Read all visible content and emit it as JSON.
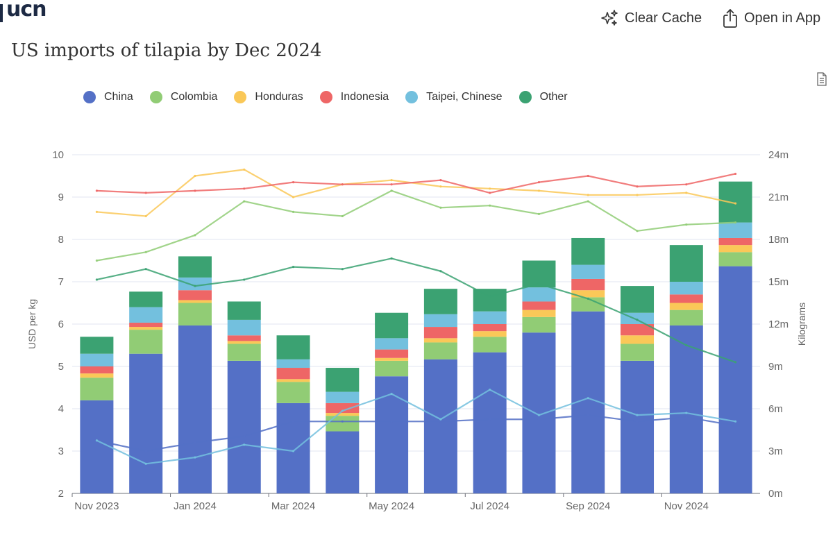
{
  "header": {
    "brand": "ucn",
    "clear_cache_label": "Clear Cache",
    "open_app_label": "Open in App",
    "clear_cache_icon": "sparkles-icon",
    "open_app_icon": "share-upload-icon",
    "data_view_icon": "document-icon"
  },
  "title": "US imports of tilapia by Dec 2024",
  "chart_data": {
    "type": "bar",
    "stacked_bars": true,
    "x": [
      "Nov 2023",
      "Dec 2023",
      "Jan 2024",
      "Feb 2024",
      "Mar 2024",
      "Apr 2024",
      "May 2024",
      "Jun 2024",
      "Jul 2024",
      "Aug 2024",
      "Sep 2024",
      "Oct 2024",
      "Nov 2024",
      "Dec 2024"
    ],
    "x_tick_labels": [
      "Nov 2023",
      "Jan 2024",
      "Mar 2024",
      "May 2024",
      "Jul 2024",
      "Sep 2024",
      "Nov 2024"
    ],
    "ylabel_left": "USD per kg",
    "ylim_left": [
      2,
      10
    ],
    "yticks_left": [
      "2",
      "3",
      "4",
      "5",
      "6",
      "7",
      "8",
      "9",
      "10"
    ],
    "ylabel_right": "Kilograms",
    "ylim_right": [
      0,
      24000000
    ],
    "yticks_right": [
      "0m",
      "3m",
      "6m",
      "9m",
      "12m",
      "15m",
      "18m",
      "21m",
      "24m"
    ],
    "grid": true,
    "legend_position": "top-left",
    "colors": {
      "China": "#5470c6",
      "Colombia": "#91cc75",
      "Honduras": "#fac858",
      "Indonesia": "#ee6666",
      "Taipei, Chinese": "#73c0de",
      "Other": "#3ba272"
    },
    "series": [
      {
        "name": "China",
        "kind": "bar",
        "axis": "right",
        "values": [
          6600000,
          9900000,
          11900000,
          9400000,
          6400000,
          4400000,
          8300000,
          9500000,
          10000000,
          11400000,
          12900000,
          9400000,
          11900000,
          16100000
        ]
      },
      {
        "name": "Colombia",
        "kind": "bar",
        "axis": "right",
        "values": [
          1600000,
          1700000,
          1600000,
          1200000,
          1500000,
          1100000,
          1100000,
          1200000,
          1100000,
          1100000,
          1000000,
          1200000,
          1100000,
          1000000
        ]
      },
      {
        "name": "Honduras",
        "kind": "bar",
        "axis": "right",
        "values": [
          300000,
          200000,
          200000,
          200000,
          200000,
          200000,
          200000,
          300000,
          400000,
          500000,
          500000,
          600000,
          500000,
          500000
        ]
      },
      {
        "name": "Indonesia",
        "kind": "bar",
        "axis": "right",
        "values": [
          500000,
          300000,
          700000,
          400000,
          800000,
          700000,
          600000,
          800000,
          500000,
          600000,
          800000,
          800000,
          600000,
          500000
        ]
      },
      {
        "name": "Taipei, Chinese",
        "kind": "bar",
        "axis": "right",
        "values": [
          900000,
          1100000,
          900000,
          1100000,
          600000,
          800000,
          800000,
          900000,
          900000,
          1000000,
          1000000,
          800000,
          900000,
          1100000
        ]
      },
      {
        "name": "Other",
        "kind": "bar",
        "axis": "right",
        "values": [
          1200000,
          1100000,
          1500000,
          1300000,
          1700000,
          1700000,
          1800000,
          1800000,
          1600000,
          1900000,
          1900000,
          1900000,
          2600000,
          2900000
        ]
      },
      {
        "name": "China",
        "kind": "line",
        "axis": "left",
        "values": [
          3.25,
          3.0,
          3.2,
          3.35,
          3.7,
          3.7,
          3.7,
          3.7,
          3.75,
          3.75,
          3.85,
          3.7,
          3.8,
          3.6
        ]
      },
      {
        "name": "Colombia",
        "kind": "line",
        "axis": "left",
        "values": [
          7.5,
          7.7,
          8.1,
          8.9,
          8.65,
          8.55,
          9.15,
          8.75,
          8.8,
          8.6,
          8.9,
          8.2,
          8.35,
          8.4
        ]
      },
      {
        "name": "Honduras",
        "kind": "line",
        "axis": "left",
        "values": [
          8.65,
          8.55,
          9.5,
          9.65,
          9.0,
          9.3,
          9.4,
          9.25,
          9.2,
          9.15,
          9.05,
          9.05,
          9.1,
          8.85
        ]
      },
      {
        "name": "Indonesia",
        "kind": "line",
        "axis": "left",
        "values": [
          9.15,
          9.1,
          9.15,
          9.2,
          9.35,
          9.3,
          9.3,
          9.4,
          9.1,
          9.35,
          9.5,
          9.25,
          9.3,
          9.55
        ]
      },
      {
        "name": "Taipei, Chinese",
        "kind": "line",
        "axis": "left",
        "values": [
          3.25,
          2.7,
          2.85,
          3.15,
          3.0,
          3.95,
          4.35,
          3.75,
          4.45,
          3.85,
          4.25,
          3.85,
          3.9,
          3.7
        ]
      },
      {
        "name": "Other",
        "kind": "line",
        "axis": "left",
        "values": [
          7.05,
          7.3,
          6.9,
          7.05,
          7.35,
          7.3,
          7.55,
          7.25,
          6.65,
          6.95,
          6.6,
          6.1,
          5.5,
          5.1
        ]
      }
    ]
  }
}
